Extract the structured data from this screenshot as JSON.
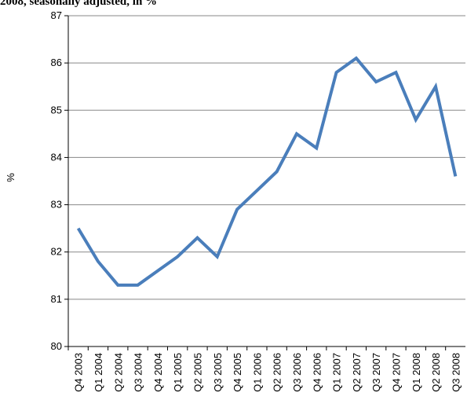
{
  "chart_data": {
    "type": "line",
    "title": "2008, seasonally adjusted, in %",
    "y_label": "%",
    "categories": [
      "Q4 2003",
      "Q1 2004",
      "Q2 2004",
      "Q3 2004",
      "Q4 2004",
      "Q1 2005",
      "Q2 2005",
      "Q3 2005",
      "Q4 2005",
      "Q1 2006",
      "Q2 2006",
      "Q3 2006",
      "Q4 2006",
      "Q1 2007",
      "Q2 2007",
      "Q3 2007",
      "Q4 2007",
      "Q1 2008",
      "Q2 2008",
      "Q3 2008"
    ],
    "series": [
      {
        "color": "#4a7ebb",
        "values": [
          82.5,
          81.8,
          81.3,
          81.3,
          81.6,
          81.9,
          82.3,
          81.9,
          82.9,
          83.3,
          83.7,
          84.5,
          84.2,
          85.8,
          86.1,
          85.6,
          85.8,
          84.8,
          85.5,
          83.6
        ]
      }
    ],
    "ylim": [
      80,
      87
    ],
    "yticks": [
      80,
      81,
      82,
      83,
      84,
      85,
      86,
      87
    ],
    "grid": true
  }
}
